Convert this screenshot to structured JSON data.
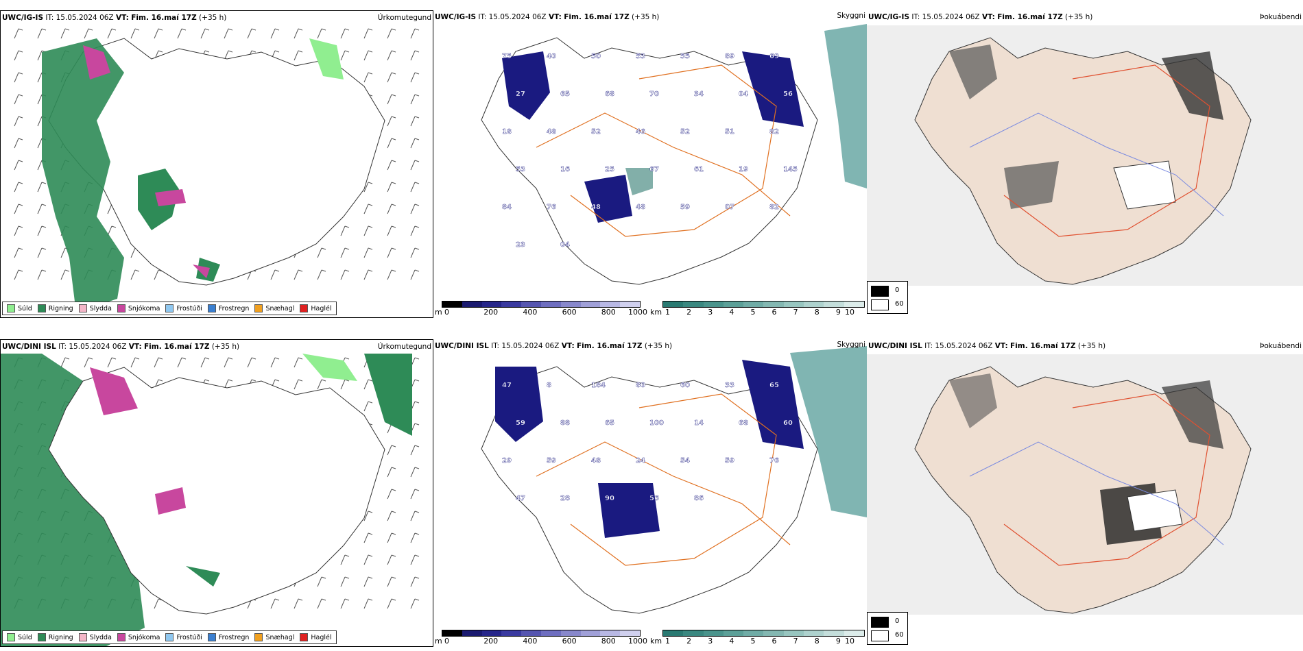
{
  "rows": [
    {
      "model": "UWC/IG-IS",
      "it_label": "IT:",
      "it_value": "15.05.2024 06Z",
      "vt_label": "VT:",
      "vt_value": "Fim. 16.maí 17Z",
      "lead": "(+35 h)",
      "precip_tag": "Úrkomutegund",
      "vis_tag": "Skyggni",
      "fog_tag": "Þokuábendi",
      "vis_labels": [
        "75",
        "40",
        "50",
        "53",
        "55",
        "89",
        "69",
        "27",
        "65",
        "68",
        "70",
        "34",
        "04",
        "56",
        "18",
        "48",
        "52",
        "46",
        "52",
        "51",
        "82",
        "53",
        "16",
        "25",
        "67",
        "61",
        "19",
        "145",
        "84",
        "76",
        "48",
        "48",
        "59",
        "07",
        "82",
        "23",
        "04"
      ]
    },
    {
      "model": "UWC/DINI ISL",
      "it_label": "IT:",
      "it_value": "15.05.2024 06Z",
      "vt_label": "VT:",
      "vt_value": "Fim. 16.maí 17Z",
      "lead": "(+35 h)",
      "precip_tag": "Úrkomutegund",
      "vis_tag": "Skyggni",
      "fog_tag": "Þokuábendi",
      "vis_labels": [
        "47",
        "8",
        "184",
        "80",
        "60",
        "33",
        "65",
        "59",
        "88",
        "65",
        "100",
        "14",
        "68",
        "60",
        "29",
        "59",
        "48",
        "24",
        "54",
        "59",
        "76",
        "47",
        "28",
        "90",
        "56",
        "86"
      ]
    }
  ],
  "precip_legend": [
    {
      "label": "Súld",
      "color": "#90ee90"
    },
    {
      "label": "Rigning",
      "color": "#2e8b57"
    },
    {
      "label": "Slydda",
      "color": "#f4b6c8"
    },
    {
      "label": "Snjókoma",
      "color": "#c8479e"
    },
    {
      "label": "Frostúði",
      "color": "#90c8f0"
    },
    {
      "label": "Frostregn",
      "color": "#3a7fd0"
    },
    {
      "label": "Snæhagl",
      "color": "#f0a020"
    },
    {
      "label": "Haglél",
      "color": "#e02020"
    }
  ],
  "height_scale": {
    "unit": "m",
    "ticks": [
      "0",
      "200",
      "400",
      "600",
      "800",
      "1000"
    ],
    "colors": [
      "#000000",
      "#1a1a70",
      "#26268a",
      "#3a3aa0",
      "#5555b0",
      "#6e6ec0",
      "#8888cc",
      "#a0a0d8",
      "#b8b8e4",
      "#d0d0ee"
    ]
  },
  "visibility_scale": {
    "unit": "km",
    "ticks": [
      "1",
      "2",
      "3",
      "4",
      "5",
      "6",
      "7",
      "8",
      "9",
      "10"
    ],
    "colors": [
      "#2a7a72",
      "#3a8880",
      "#4a948c",
      "#5ca098",
      "#70aca6",
      "#84b8b2",
      "#98c6c0",
      "#aed2ce",
      "#c4dedb",
      "#dcecea"
    ]
  },
  "fog_scale": {
    "values": [
      "0",
      "60"
    ],
    "colors": [
      "#000000",
      "#ffffff"
    ]
  }
}
